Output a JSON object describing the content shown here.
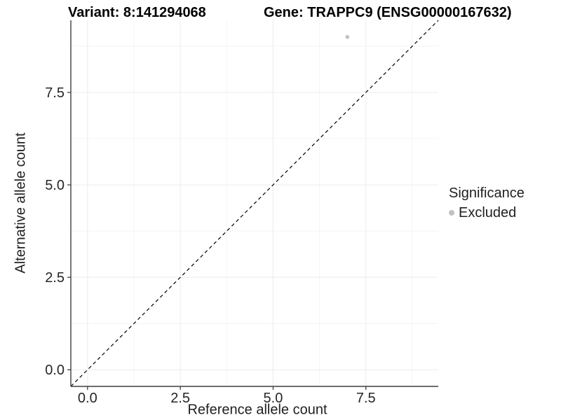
{
  "header": {
    "variant_title": "Variant: 8:141294068",
    "gene_title": "Gene: TRAPPC9 (ENSG00000167632)"
  },
  "axes": {
    "x_title": "Reference allele count",
    "y_title": "Alternative allele count"
  },
  "legend": {
    "title": "Significance",
    "items": [
      {
        "label": "Excluded",
        "color": "#c1c1c1"
      }
    ]
  },
  "colors": {
    "background": "#ffffff",
    "grid_major": "#ececec",
    "grid_minor": "#f4f4f4",
    "axis_line": "#3f3f3f",
    "tick_mark": "#333333",
    "tick_text": "#262626",
    "identity_line": "#000000",
    "point": "#c1c1c1"
  },
  "chart_data": {
    "type": "scatter",
    "title": "Variant: 8:141294068   Gene: TRAPPC9 (ENSG00000167632)",
    "xlabel": "Reference allele count",
    "ylabel": "Alternative allele count",
    "xlim": [
      -0.45,
      9.45
    ],
    "ylim": [
      -0.45,
      9.45
    ],
    "x_ticks": [
      0.0,
      2.5,
      5.0,
      7.5
    ],
    "y_ticks": [
      0.0,
      2.5,
      5.0,
      7.5
    ],
    "x_tick_labels": [
      "0.0",
      "2.5",
      "5.0",
      "7.5"
    ],
    "y_tick_labels": [
      "0.0",
      "2.5",
      "5.0",
      "7.5"
    ],
    "x_minor_ticks": [
      1.25,
      3.75,
      6.25,
      8.75
    ],
    "y_minor_ticks": [
      1.25,
      3.75,
      6.25,
      8.75
    ],
    "grid": true,
    "legend_position": "right",
    "reference_line": {
      "type": "identity",
      "slope": 1,
      "intercept": 0,
      "style": "dashed"
    },
    "series": [
      {
        "name": "Excluded",
        "color": "#c1c1c1",
        "points": [
          {
            "x": 7,
            "y": 9
          }
        ]
      }
    ]
  }
}
